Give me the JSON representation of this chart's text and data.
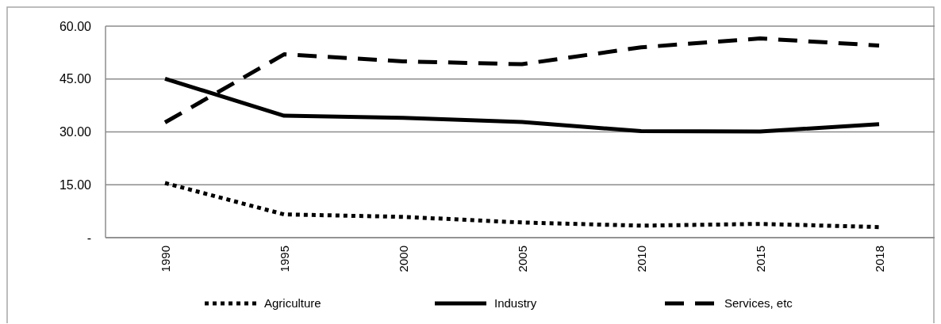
{
  "chart_data": {
    "type": "line",
    "categories": [
      "1990",
      "1995",
      "2000",
      "2005",
      "2010",
      "2015",
      "2018"
    ],
    "series": [
      {
        "name": "Agriculture",
        "color": "#000000",
        "line_style": "dotted",
        "values": [
          15.5,
          6.6,
          5.9,
          4.3,
          3.4,
          3.9,
          3.0
        ]
      },
      {
        "name": "Industry",
        "color": "#000000",
        "line_style": "solid",
        "values": [
          45.1,
          34.6,
          34.0,
          32.8,
          30.2,
          30.1,
          32.2
        ]
      },
      {
        "name": "Services, etc",
        "color": "#000000",
        "line_style": "dashed",
        "values": [
          32.7,
          52.0,
          50.0,
          49.2,
          54.0,
          56.5,
          54.5
        ]
      }
    ],
    "ylim": [
      0,
      60
    ],
    "yticks": [
      {
        "value": 0,
        "label": "-"
      },
      {
        "value": 15,
        "label": "15.00"
      },
      {
        "value": 30,
        "label": "30.00"
      },
      {
        "value": 45,
        "label": "45.00"
      },
      {
        "value": 60,
        "label": "60.00"
      }
    ],
    "grid": "y",
    "legend": "bottom",
    "marker": "none"
  }
}
